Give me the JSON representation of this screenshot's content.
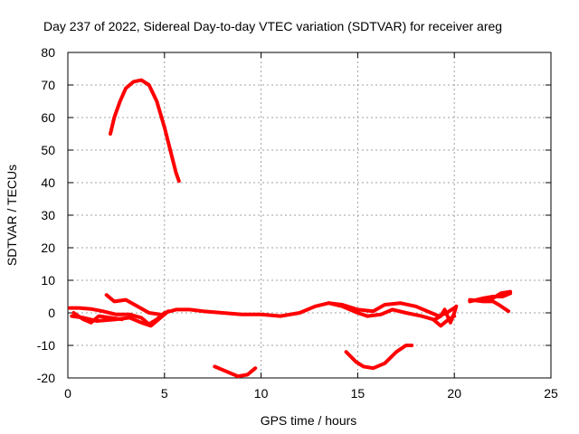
{
  "chart_data": {
    "type": "line",
    "title": "Day 237 of 2022, Sidereal Day-to-day VTEC variation (SDTVAR) for receiver areg",
    "xlabel": "GPS time / hours",
    "ylabel": "SDTVAR / TECUs",
    "xlim": [
      0,
      25
    ],
    "ylim": [
      -20,
      80
    ],
    "xticks": [
      0,
      5,
      10,
      15,
      20,
      25
    ],
    "yticks": [
      -20,
      -10,
      0,
      10,
      20,
      30,
      40,
      50,
      60,
      70,
      80
    ],
    "grid": true,
    "color": "#ff0000",
    "series": [
      {
        "name": "arc-high",
        "points": [
          [
            2.2,
            55
          ],
          [
            2.4,
            60
          ],
          [
            2.7,
            65
          ],
          [
            3.0,
            69
          ],
          [
            3.4,
            71
          ],
          [
            3.8,
            71.5
          ],
          [
            4.2,
            70
          ],
          [
            4.6,
            65
          ],
          [
            5.0,
            57
          ],
          [
            5.3,
            50
          ],
          [
            5.6,
            43
          ],
          [
            5.75,
            40.5
          ]
        ]
      },
      {
        "name": "arc-low-a",
        "points": [
          [
            0.1,
            1.5
          ],
          [
            0.6,
            1.5
          ],
          [
            1.2,
            1.2
          ],
          [
            1.8,
            0.5
          ],
          [
            2.5,
            -0.5
          ],
          [
            3.2,
            -0.5
          ],
          [
            3.8,
            -1.5
          ],
          [
            4.2,
            -3.5
          ],
          [
            4.6,
            -2
          ],
          [
            5.0,
            0
          ],
          [
            5.6,
            1
          ],
          [
            6.3,
            1
          ],
          [
            7.0,
            0.5
          ],
          [
            8.0,
            0
          ],
          [
            9.0,
            -0.5
          ],
          [
            10.0,
            -0.5
          ],
          [
            11.0,
            -1
          ],
          [
            12.0,
            0
          ],
          [
            12.8,
            2
          ],
          [
            13.5,
            3
          ],
          [
            14.2,
            2.5
          ],
          [
            15.0,
            1
          ],
          [
            15.8,
            0.5
          ],
          [
            16.4,
            2.5
          ],
          [
            17.2,
            3
          ],
          [
            18.0,
            2
          ],
          [
            18.8,
            0
          ],
          [
            19.2,
            -1
          ],
          [
            19.6,
            0
          ],
          [
            20.0,
            1.5
          ]
        ]
      },
      {
        "name": "arc-low-b",
        "points": [
          [
            0.2,
            -1
          ],
          [
            0.8,
            -1.5
          ],
          [
            1.5,
            -2.5
          ],
          [
            2.5,
            -2
          ],
          [
            3.2,
            -1.5
          ],
          [
            3.8,
            -3
          ],
          [
            4.3,
            -4
          ],
          [
            4.8,
            -1.5
          ],
          [
            5.2,
            0.5
          ]
        ]
      },
      {
        "name": "arc-low-c",
        "points": [
          [
            2.0,
            5.5
          ],
          [
            2.4,
            3.5
          ],
          [
            3.0,
            4
          ],
          [
            3.6,
            2
          ],
          [
            4.2,
            0
          ],
          [
            4.8,
            -0.5
          ]
        ]
      },
      {
        "name": "arc-low-d",
        "points": [
          [
            0.3,
            0
          ],
          [
            0.8,
            -2
          ],
          [
            1.2,
            -3
          ],
          [
            1.6,
            -1
          ],
          [
            2.2,
            -1.5
          ],
          [
            2.8,
            -2
          ]
        ]
      },
      {
        "name": "arc-low-e",
        "points": [
          [
            13.5,
            3
          ],
          [
            14.2,
            2
          ],
          [
            15.0,
            0
          ],
          [
            15.5,
            -1
          ],
          [
            16.2,
            -0.5
          ],
          [
            16.8,
            1
          ],
          [
            17.5,
            0
          ],
          [
            18.3,
            -1
          ],
          [
            18.9,
            -2
          ],
          [
            19.3,
            -4
          ],
          [
            19.7,
            -2
          ],
          [
            20.0,
            -1
          ]
        ]
      },
      {
        "name": "arc-low-f",
        "points": [
          [
            19.0,
            -2
          ],
          [
            19.3,
            -1
          ],
          [
            19.5,
            1
          ],
          [
            19.8,
            -3
          ],
          [
            20.0,
            0
          ],
          [
            20.1,
            2
          ]
        ]
      },
      {
        "name": "arc-neg-1",
        "points": [
          [
            7.6,
            -16.5
          ],
          [
            8.2,
            -18
          ],
          [
            8.8,
            -19.5
          ],
          [
            9.3,
            -19
          ],
          [
            9.7,
            -17
          ]
        ]
      },
      {
        "name": "arc-neg-2",
        "points": [
          [
            14.4,
            -12
          ],
          [
            14.9,
            -15
          ],
          [
            15.3,
            -16.5
          ],
          [
            15.8,
            -17
          ],
          [
            16.4,
            -15.5
          ],
          [
            17.0,
            -12
          ],
          [
            17.5,
            -10
          ],
          [
            17.8,
            -10
          ]
        ]
      },
      {
        "name": "arc-late-1",
        "points": [
          [
            20.8,
            3.5
          ],
          [
            21.5,
            4.5
          ],
          [
            22.0,
            5
          ],
          [
            22.5,
            5
          ],
          [
            22.9,
            6
          ]
        ]
      },
      {
        "name": "arc-late-2",
        "points": [
          [
            20.8,
            4
          ],
          [
            21.5,
            3.5
          ],
          [
            22.0,
            3.5
          ],
          [
            22.3,
            2.5
          ],
          [
            22.8,
            0.5
          ]
        ]
      },
      {
        "name": "arc-late-3",
        "points": [
          [
            21.6,
            4
          ],
          [
            22.0,
            4.5
          ],
          [
            22.4,
            6
          ],
          [
            22.9,
            6.5
          ]
        ]
      }
    ]
  }
}
